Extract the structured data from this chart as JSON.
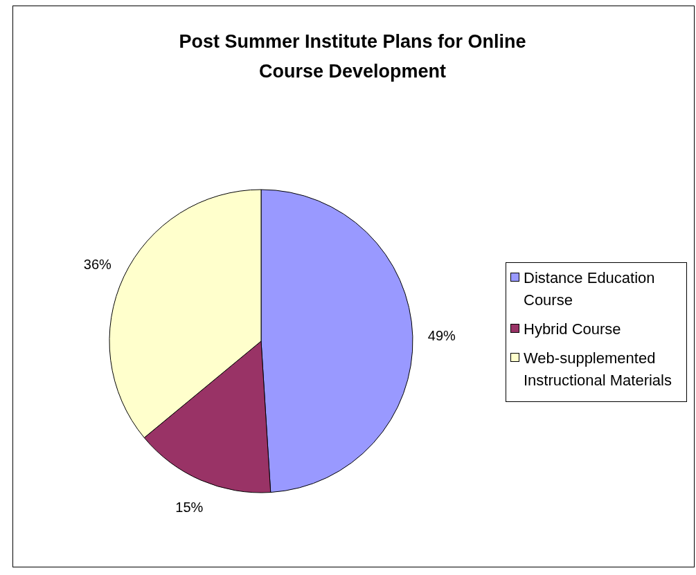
{
  "chart_data": {
    "type": "pie",
    "title": "Post Summer Institute Plans for Online Course Development",
    "categories": [
      "Distance Education Course",
      "Hybrid Course",
      "Web-supplemented Instructional Materials"
    ],
    "values": [
      49,
      15,
      36
    ],
    "colors": [
      "#9999ff",
      "#993366",
      "#ffffcc"
    ],
    "value_labels": [
      "49%",
      "15%",
      "36%"
    ],
    "legend": "right"
  }
}
